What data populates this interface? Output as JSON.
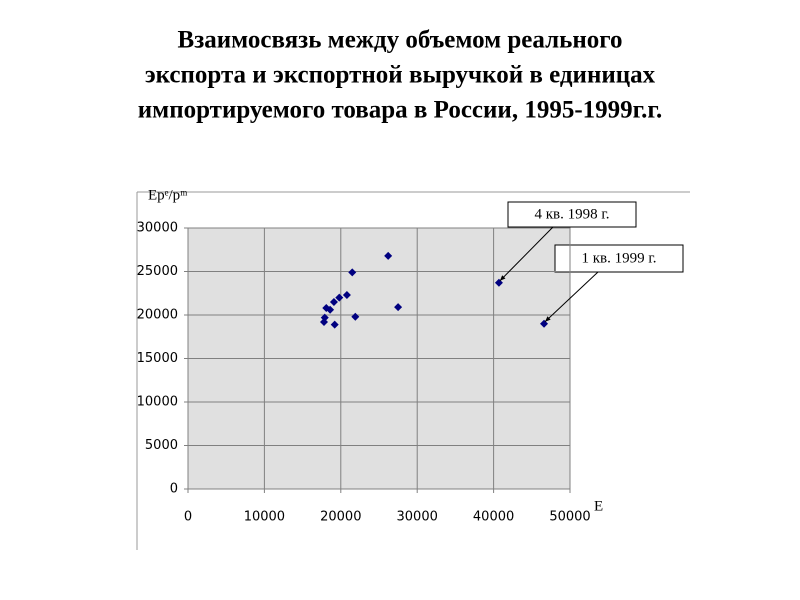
{
  "chart_data": {
    "type": "scatter",
    "title": [
      "Взаимосвязь между объемом реального",
      "экспорта и экспортной выручкой в единицах",
      "импортируемого товара в России, 1995-1999г.г."
    ],
    "y_label": "Epᵉ/pᵐ",
    "x_label": "E",
    "x": [
      17900,
      17800,
      18100,
      18600,
      19100,
      19800,
      20800,
      21500,
      19200,
      21900,
      26200,
      27500,
      40700,
      46600
    ],
    "values": [
      19700,
      19200,
      20800,
      20600,
      21500,
      22000,
      22300,
      24900,
      18900,
      19800,
      26800,
      20900,
      23700,
      19000
    ],
    "color": "#000080",
    "xlim": [
      0,
      50000
    ],
    "xticks": [
      0,
      10000,
      20000,
      30000,
      40000,
      50000
    ],
    "ylim": [
      0,
      30000
    ],
    "yticks": [
      0,
      5000,
      10000,
      15000,
      20000,
      25000,
      30000
    ],
    "grid": true,
    "annotations": [
      "4 кв. 1998 г.",
      "1 кв. 1999 г."
    ]
  }
}
